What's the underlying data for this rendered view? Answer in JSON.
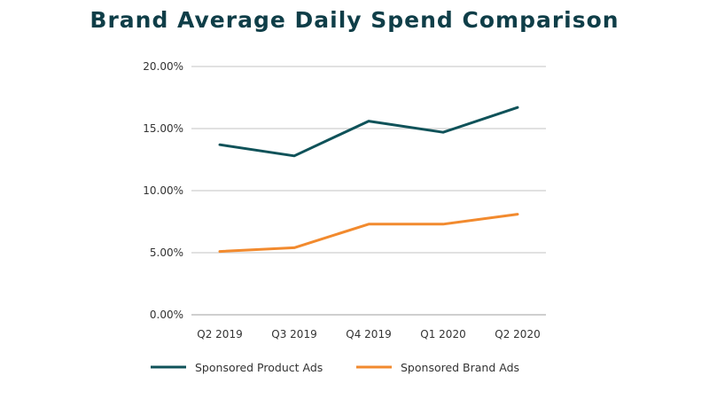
{
  "colors": {
    "title": "#0f3e48",
    "product": "#0f5259",
    "brand": "#f28a2e",
    "grid": "#d7d7d7",
    "axis": "#cfcfcf"
  },
  "chart_data": {
    "type": "line",
    "title": "Brand Average Daily Spend Comparison",
    "categories": [
      "Q2 2019",
      "Q3 2019",
      "Q4 2019",
      "Q1 2020",
      "Q2 2020"
    ],
    "ylim": [
      0,
      20
    ],
    "yticks": [
      0,
      5,
      10,
      15,
      20
    ],
    "ytick_labels": [
      "0.00%",
      "5.00%",
      "10.00%",
      "15.00%",
      "20.00%"
    ],
    "xlabel": "",
    "ylabel": "",
    "grid": true,
    "legend_position": "bottom",
    "series": [
      {
        "name": "Sponsored Product Ads",
        "color": "#0f5259",
        "values": [
          13.7,
          12.8,
          15.6,
          14.7,
          16.7
        ]
      },
      {
        "name": "Sponsored Brand Ads",
        "color": "#f28a2e",
        "values": [
          5.1,
          5.4,
          7.3,
          7.3,
          8.1
        ]
      }
    ]
  }
}
